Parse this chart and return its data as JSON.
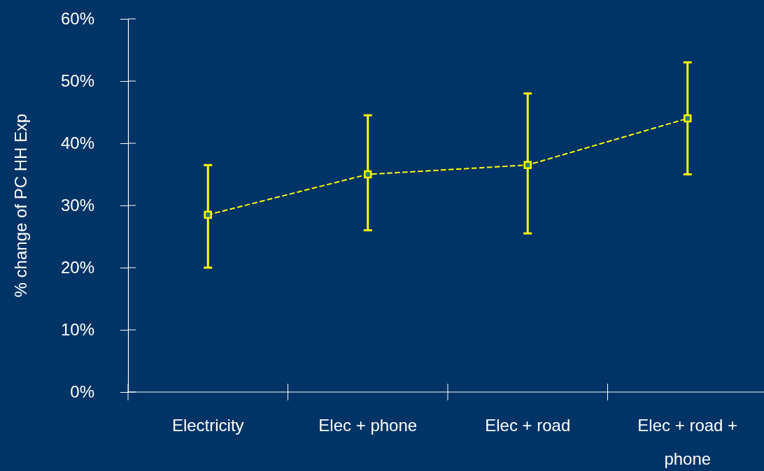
{
  "chart_data": {
    "type": "line",
    "ylabel": "% change of PC HH Exp",
    "categories": [
      "Electricity",
      "Elec + phone",
      "Elec + road",
      "Elec + road + phone"
    ],
    "series": [
      {
        "color": "#ffff00",
        "values": [
          28.5,
          35,
          36.5,
          44
        ],
        "errors": [
          [
            20,
            36.5
          ],
          [
            26,
            44.5
          ],
          [
            25.5,
            48
          ],
          [
            35,
            53
          ]
        ]
      }
    ],
    "ylim": [
      0,
      60
    ],
    "yticks": [
      {
        "value": 0,
        "label": "0%"
      },
      {
        "value": 10,
        "label": "10%"
      },
      {
        "value": 20,
        "label": "20%"
      },
      {
        "value": 30,
        "label": "30%"
      },
      {
        "value": 40,
        "label": "40%"
      },
      {
        "value": 50,
        "label": "50%"
      },
      {
        "value": 60,
        "label": "60%"
      }
    ],
    "grid": false,
    "marker": "square",
    "line_style": "dashed"
  }
}
